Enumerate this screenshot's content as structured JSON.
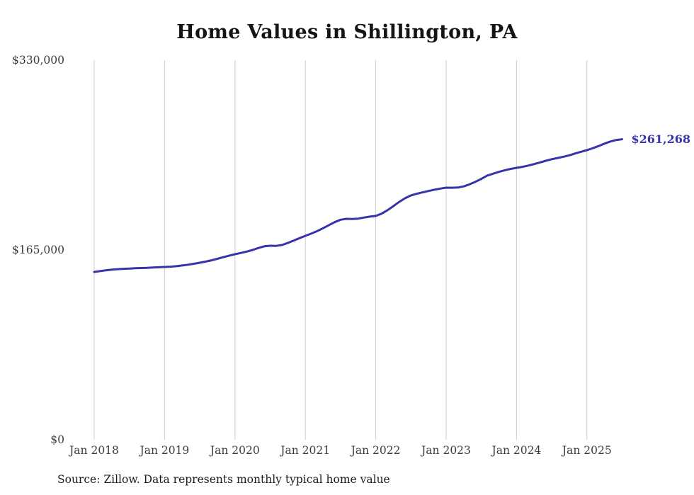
{
  "chart_data": {
    "type": "line",
    "title": "Home Values in Shillington, PA",
    "source_note": "Source: Zillow. Data represents monthly typical home value",
    "series_name": "Typical home value",
    "x_interval": "monthly",
    "x_start": "Jan 2018",
    "x_end": "Jul 2025",
    "x_tick_labels": [
      "Jan 2018",
      "Jan 2019",
      "Jan 2020",
      "Jan 2021",
      "Jan 2022",
      "Jan 2023",
      "Jan 2024",
      "Jan 2025"
    ],
    "y_tick_values": [
      0,
      165000,
      330000
    ],
    "y_tick_labels": [
      "$0",
      "$165,000",
      "$330,000"
    ],
    "ylim": [
      0,
      330000
    ],
    "end_label": "$261,268",
    "end_value": 261268,
    "line_color": "#3733ab",
    "grid_color": "#cccccc",
    "label_color": "#3c3c3c",
    "legend": "none",
    "grid": "vertical-only",
    "values": [
      145900,
      146600,
      147300,
      147900,
      148300,
      148600,
      148900,
      149100,
      149300,
      149500,
      149800,
      150000,
      150200,
      150500,
      150900,
      151500,
      152200,
      153000,
      153900,
      154900,
      156000,
      157300,
      158700,
      160000,
      161300,
      162400,
      163600,
      165000,
      166700,
      168200,
      168700,
      168600,
      169300,
      171100,
      173200,
      175300,
      177300,
      179200,
      181400,
      183900,
      186500,
      189200,
      191300,
      192100,
      191900,
      192300,
      193200,
      194000,
      194600,
      196600,
      199600,
      203100,
      206800,
      210000,
      212400,
      213900,
      215100,
      216300,
      217400,
      218400,
      219200,
      219100,
      219300,
      220300,
      222100,
      224300,
      226800,
      229700,
      231300,
      232900,
      234300,
      235500,
      236400,
      237300,
      238400,
      239700,
      241100,
      242600,
      243900,
      245000,
      246100,
      247300,
      248900,
      250400,
      251800,
      253500,
      255400,
      257500,
      259300,
      260600,
      261268
    ]
  }
}
